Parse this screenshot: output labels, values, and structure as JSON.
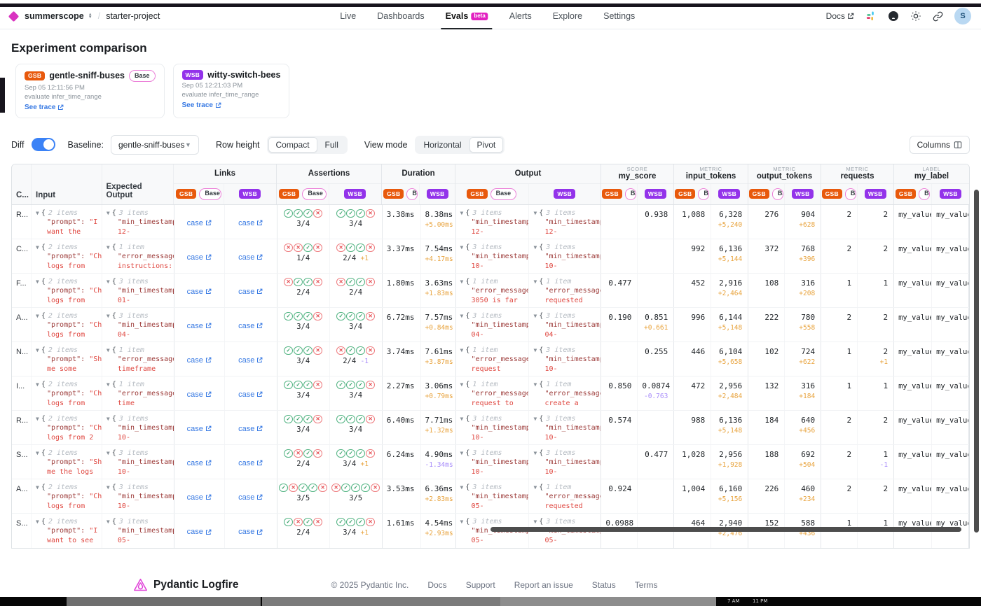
{
  "nav": {
    "org": "summerscope",
    "project": "starter-project",
    "items": [
      {
        "label": "Live"
      },
      {
        "label": "Dashboards"
      },
      {
        "label": "Evals",
        "badge": "beta",
        "active": true
      },
      {
        "label": "Alerts"
      },
      {
        "label": "Explore"
      },
      {
        "label": "Settings"
      }
    ],
    "docs_label": "Docs",
    "avatar": "S"
  },
  "title": "Experiment comparison",
  "experiments": [
    {
      "abbr": "GSB",
      "name": "gentle-sniff-buses",
      "base_label": "Base",
      "timestamp": "Sep 05 12:11:56 PM",
      "task": "evaluate infer_time_range",
      "trace_label": "See trace"
    },
    {
      "abbr": "WSB",
      "name": "witty-switch-bees",
      "timestamp": "Sep 05 12:21:03 PM",
      "task": "evaluate infer_time_range",
      "trace_label": "See trace"
    }
  ],
  "controls": {
    "diff_label": "Diff",
    "diff_on": true,
    "baseline_label": "Baseline:",
    "baseline_value": "gentle-sniff-buses",
    "row_height_label": "Row height",
    "row_height_options": [
      "Compact",
      "Full"
    ],
    "row_height_selected": "Compact",
    "view_mode_label": "View mode",
    "view_mode_options": [
      "Horizontal",
      "Pivot"
    ],
    "view_mode_selected": "Pivot",
    "columns_label": "Columns"
  },
  "table": {
    "lead_columns": {
      "case": "C...",
      "input": "Input",
      "expected": "Expected Output"
    },
    "badges": {
      "gsb": "GSB",
      "wsb": "WSB",
      "base": "Base"
    },
    "groups": [
      {
        "kicker": "",
        "label": "Links"
      },
      {
        "kicker": "",
        "label": "Assertions"
      },
      {
        "kicker": "",
        "label": "Duration"
      },
      {
        "kicker": "",
        "label": "Output"
      },
      {
        "kicker": "SCORE",
        "label": "my_score"
      },
      {
        "kicker": "METRIC",
        "label": "input_tokens"
      },
      {
        "kicker": "METRIC",
        "label": "output_tokens"
      },
      {
        "kicker": "METRIC",
        "label": "requests"
      },
      {
        "kicker": "LABEL",
        "label": "my_label"
      }
    ],
    "link_text": "case",
    "rows": [
      {
        "case": "R...",
        "input": {
          "count": "2 items",
          "key": "\"prompt\":",
          "valstart": "\"I",
          "val2": "want the"
        },
        "expected": {
          "count": "3 items",
          "key": "\"min_timestamp",
          "val2": "12-"
        },
        "asserts": {
          "gsb": {
            "icons": "cccx",
            "score": "3/4",
            "d": ""
          },
          "wsb": {
            "icons": "cccx",
            "score": "3/4",
            "d": ""
          }
        },
        "duration": {
          "gsb": "3.38ms",
          "wsb": "8.38ms",
          "wd": "+5.00ms"
        },
        "output": {
          "gsb": {
            "count": "3 items",
            "key": "\"min_timestamp",
            "val2": "12-"
          },
          "wsb": {
            "count": "3 items",
            "key": "\"min_timestamp",
            "val2": "12-"
          }
        },
        "score": {
          "g": "",
          "gd": "",
          "w": "0.938",
          "wd": ""
        },
        "itok": {
          "g": "1,088",
          "gd": "",
          "w": "6,328",
          "wd": "+5,240"
        },
        "otok": {
          "g": "276",
          "gd": "",
          "w": "904",
          "wd": "+628"
        },
        "req": {
          "g": "2",
          "gd": "",
          "w": "2",
          "wd": ""
        },
        "label": {
          "g": "my_value_",
          "w": "my_value_"
        }
      },
      {
        "case": "C...",
        "input": {
          "count": "2 items",
          "key": "\"prompt\":",
          "valstart": "\"Ch",
          "val2": "logs from"
        },
        "expected": {
          "count": "1 item",
          "key": "\"error_message",
          "val2": "instructions:"
        },
        "asserts": {
          "gsb": {
            "icons": "xxcx",
            "score": "1/4",
            "d": ""
          },
          "wsb": {
            "icons": "xccx",
            "score": "2/4",
            "d": "+1"
          }
        },
        "duration": {
          "gsb": "3.37ms",
          "wsb": "7.54ms",
          "wd": "+4.17ms"
        },
        "output": {
          "gsb": {
            "count": "3 items",
            "key": "\"min_timestamp",
            "val2": "10-"
          },
          "wsb": {
            "count": "3 items",
            "key": "\"min_timestamp",
            "val2": "10-"
          }
        },
        "score": {
          "g": "",
          "gd": "",
          "w": "",
          "wd": ""
        },
        "itok": {
          "g": "992",
          "gd": "",
          "w": "6,136",
          "wd": "+5,144"
        },
        "otok": {
          "g": "372",
          "gd": "",
          "w": "768",
          "wd": "+396"
        },
        "req": {
          "g": "2",
          "gd": "",
          "w": "2",
          "wd": ""
        },
        "label": {
          "g": "my_value_",
          "w": "my_value_"
        }
      },
      {
        "case": "F...",
        "input": {
          "count": "2 items",
          "key": "\"prompt\":",
          "valstart": "\"Ch",
          "val2": "logs from"
        },
        "expected": {
          "count": "3 items",
          "key": "\"min_timestamp",
          "val2": "01-"
        },
        "asserts": {
          "gsb": {
            "icons": "xccx",
            "score": "2/4",
            "d": ""
          },
          "wsb": {
            "icons": "xccx",
            "score": "2/4",
            "d": ""
          }
        },
        "duration": {
          "gsb": "1.80ms",
          "wsb": "3.63ms",
          "wd": "+1.83ms"
        },
        "output": {
          "gsb": {
            "count": "1 item",
            "key": "\"error_message",
            "val2": "3050 is far"
          },
          "wsb": {
            "count": "1 item",
            "key": "\"error_message",
            "val2": "requested"
          }
        },
        "score": {
          "g": "0.477",
          "gd": "",
          "w": "",
          "wd": ""
        },
        "itok": {
          "g": "452",
          "gd": "",
          "w": "2,916",
          "wd": "+2,464"
        },
        "otok": {
          "g": "108",
          "gd": "",
          "w": "316",
          "wd": "+208"
        },
        "req": {
          "g": "1",
          "gd": "",
          "w": "1",
          "wd": ""
        },
        "label": {
          "g": "my_value_",
          "w": "my_value_"
        }
      },
      {
        "case": "A...",
        "input": {
          "count": "2 items",
          "key": "\"prompt\":",
          "valstart": "\"Ch",
          "val2": "logs from"
        },
        "expected": {
          "count": "3 items",
          "key": "\"min_timestamp",
          "val2": "04-"
        },
        "asserts": {
          "gsb": {
            "icons": "cccx",
            "score": "3/4",
            "d": ""
          },
          "wsb": {
            "icons": "cccx",
            "score": "3/4",
            "d": ""
          }
        },
        "duration": {
          "gsb": "6.72ms",
          "wsb": "7.57ms",
          "wd": "+0.84ms"
        },
        "output": {
          "gsb": {
            "count": "3 items",
            "key": "\"min_timestamp",
            "val2": "04-"
          },
          "wsb": {
            "count": "3 items",
            "key": "\"min_timestamp",
            "val2": "04-"
          }
        },
        "score": {
          "g": "0.190",
          "gd": "",
          "w": "0.851",
          "wd": "+0.661"
        },
        "itok": {
          "g": "996",
          "gd": "",
          "w": "6,144",
          "wd": "+5,148"
        },
        "otok": {
          "g": "222",
          "gd": "",
          "w": "780",
          "wd": "+558"
        },
        "req": {
          "g": "2",
          "gd": "",
          "w": "2",
          "wd": ""
        },
        "label": {
          "g": "my_value_",
          "w": "my_value_"
        }
      },
      {
        "case": "N...",
        "input": {
          "count": "2 items",
          "key": "\"prompt\":",
          "valstart": "\"Sh",
          "val2": "me some"
        },
        "expected": {
          "count": "1 item",
          "key": "\"error_message",
          "val2": "timeframe"
        },
        "asserts": {
          "gsb": {
            "icons": "cccx",
            "score": "3/4",
            "d": ""
          },
          "wsb": {
            "icons": "xccx",
            "score": "2/4",
            "d": "-1"
          }
        },
        "duration": {
          "gsb": "3.74ms",
          "wsb": "7.61ms",
          "wd": "+3.87ms"
        },
        "output": {
          "gsb": {
            "count": "1 item",
            "key": "\"error_message",
            "val2": "request"
          },
          "wsb": {
            "count": "3 items",
            "key": "\"min_timestamp",
            "val2": "10-"
          }
        },
        "score": {
          "g": "",
          "gd": "",
          "w": "0.255",
          "wd": ""
        },
        "itok": {
          "g": "446",
          "gd": "",
          "w": "6,104",
          "wd": "+5,658"
        },
        "otok": {
          "g": "102",
          "gd": "",
          "w": "724",
          "wd": "+622"
        },
        "req": {
          "g": "1",
          "gd": "",
          "w": "2",
          "wd": "+1"
        },
        "label": {
          "g": "my_value_",
          "w": "my_value_"
        }
      },
      {
        "case": "I...",
        "input": {
          "count": "2 items",
          "key": "\"prompt\":",
          "valstart": "\"Ch",
          "val2": "logs from"
        },
        "expected": {
          "count": "1 item",
          "key": "\"error_message",
          "val2": "time"
        },
        "asserts": {
          "gsb": {
            "icons": "cccx",
            "score": "3/4",
            "d": ""
          },
          "wsb": {
            "icons": "cccx",
            "score": "3/4",
            "d": ""
          }
        },
        "duration": {
          "gsb": "2.27ms",
          "wsb": "3.06ms",
          "wd": "+0.79ms"
        },
        "output": {
          "gsb": {
            "count": "1 item",
            "key": "\"error_message",
            "val2": "request to"
          },
          "wsb": {
            "count": "1 item",
            "key": "\"error_message",
            "val2": "create a"
          }
        },
        "score": {
          "g": "0.850",
          "gd": "",
          "w": "0.0874",
          "wd": "-0.763"
        },
        "itok": {
          "g": "472",
          "gd": "",
          "w": "2,956",
          "wd": "+2,484"
        },
        "otok": {
          "g": "132",
          "gd": "",
          "w": "316",
          "wd": "+184"
        },
        "req": {
          "g": "1",
          "gd": "",
          "w": "1",
          "wd": ""
        },
        "label": {
          "g": "my_value_",
          "w": "my_value_"
        }
      },
      {
        "case": "R...",
        "input": {
          "count": "2 items",
          "key": "\"prompt\":",
          "valstart": "\"Ch",
          "val2": "logs from 2"
        },
        "expected": {
          "count": "3 items",
          "key": "\"min_timestamp",
          "val2": "10-"
        },
        "asserts": {
          "gsb": {
            "icons": "cccx",
            "score": "3/4",
            "d": ""
          },
          "wsb": {
            "icons": "cccx",
            "score": "3/4",
            "d": ""
          }
        },
        "duration": {
          "gsb": "6.40ms",
          "wsb": "7.71ms",
          "wd": "+1.32ms"
        },
        "output": {
          "gsb": {
            "count": "3 items",
            "key": "\"min_timestamp",
            "val2": "10-"
          },
          "wsb": {
            "count": "3 items",
            "key": "\"min_timestamp",
            "val2": "10-"
          }
        },
        "score": {
          "g": "0.574",
          "gd": "",
          "w": "",
          "wd": ""
        },
        "itok": {
          "g": "988",
          "gd": "",
          "w": "6,136",
          "wd": "+5,148"
        },
        "otok": {
          "g": "184",
          "gd": "",
          "w": "640",
          "wd": "+456"
        },
        "req": {
          "g": "2",
          "gd": "",
          "w": "2",
          "wd": ""
        },
        "label": {
          "g": "my_value_",
          "w": "my_value_"
        }
      },
      {
        "case": "S...",
        "input": {
          "count": "2 items",
          "key": "\"prompt\":",
          "valstart": "\"Sh",
          "val2": "me the logs"
        },
        "expected": {
          "count": "3 items",
          "key": "\"min_timestamp",
          "val2": "10-"
        },
        "asserts": {
          "gsb": {
            "icons": "cxcx",
            "score": "2/4",
            "d": ""
          },
          "wsb": {
            "icons": "cccx",
            "score": "3/4",
            "d": "+1"
          }
        },
        "duration": {
          "gsb": "6.24ms",
          "wsb": "4.90ms",
          "wd": "-1.34ms"
        },
        "output": {
          "gsb": {
            "count": "3 items",
            "key": "\"min_timestamp",
            "val2": "10-"
          },
          "wsb": {
            "count": "3 items",
            "key": "\"min_timestamp",
            "val2": "10-"
          }
        },
        "score": {
          "g": "",
          "gd": "",
          "w": "0.477",
          "wd": ""
        },
        "itok": {
          "g": "1,028",
          "gd": "",
          "w": "2,956",
          "wd": "+1,928"
        },
        "otok": {
          "g": "188",
          "gd": "",
          "w": "692",
          "wd": "+504"
        },
        "req": {
          "g": "2",
          "gd": "",
          "w": "1",
          "wd": "-1"
        },
        "label": {
          "g": "my_value_",
          "w": "my_value_"
        }
      },
      {
        "case": "A...",
        "input": {
          "count": "2 items",
          "key": "\"prompt\":",
          "valstart": "\"Ch",
          "val2": "logs from"
        },
        "expected": {
          "count": "3 items",
          "key": "\"min_timestamp",
          "val2": "10-"
        },
        "asserts": {
          "gsb": {
            "icons": "cxccx",
            "score": "3/5",
            "d": ""
          },
          "wsb": {
            "icons": "xcccx",
            "score": "3/5",
            "d": ""
          }
        },
        "duration": {
          "gsb": "3.53ms",
          "wsb": "6.36ms",
          "wd": "+2.83ms"
        },
        "output": {
          "gsb": {
            "count": "3 items",
            "key": "\"min_timestamp",
            "val2": "05-"
          },
          "wsb": {
            "count": "1 item",
            "key": "\"error_message",
            "val2": "requested"
          }
        },
        "score": {
          "g": "0.924",
          "gd": "",
          "w": "",
          "wd": ""
        },
        "itok": {
          "g": "1,004",
          "gd": "",
          "w": "6,160",
          "wd": "+5,156"
        },
        "otok": {
          "g": "226",
          "gd": "",
          "w": "460",
          "wd": "+234"
        },
        "req": {
          "g": "2",
          "gd": "",
          "w": "2",
          "wd": ""
        },
        "label": {
          "g": "my_value_",
          "w": "my_value_"
        }
      },
      {
        "case": "S...",
        "input": {
          "count": "2 items",
          "key": "\"prompt\":",
          "valstart": "\"I",
          "val2": "want to see"
        },
        "expected": {
          "count": "3 items",
          "key": "\"min_timestamp",
          "val2": "05-"
        },
        "asserts": {
          "gsb": {
            "icons": "cxcx",
            "score": "2/4",
            "d": ""
          },
          "wsb": {
            "icons": "cccx",
            "score": "3/4",
            "d": "+1"
          }
        },
        "duration": {
          "gsb": "1.61ms",
          "wsb": "4.54ms",
          "wd": "+2.93ms"
        },
        "output": {
          "gsb": {
            "count": "3 items",
            "key": "\"min_timestamp",
            "val2": "05-"
          },
          "wsb": {
            "count": "3 items",
            "key": "\"min_timestamp",
            "val2": "05-"
          }
        },
        "score": {
          "g": "0.0988",
          "gd": "",
          "w": "",
          "wd": ""
        },
        "itok": {
          "g": "464",
          "gd": "",
          "w": "2,940",
          "wd": "+2,476"
        },
        "otok": {
          "g": "152",
          "gd": "",
          "w": "588",
          "wd": "+436"
        },
        "req": {
          "g": "1",
          "gd": "",
          "w": "1",
          "wd": ""
        },
        "label": {
          "g": "my_value_",
          "w": "my_value_"
        }
      }
    ]
  },
  "footer": {
    "brand": "Pydantic Logfire",
    "copyright": "© 2025 Pydantic Inc.",
    "links": [
      "Docs",
      "Support",
      "Report an issue",
      "Status",
      "Terms"
    ]
  },
  "taskbar": {
    "times": [
      "7 AM",
      "11 PM"
    ]
  },
  "colors": {
    "gsb": "#e8590c",
    "wsb": "#9333ea",
    "beta": "#e221c1",
    "link": "#3779e3",
    "diff_pos": "#e8a33d",
    "diff_neg": "#a78bfa",
    "check": "#2f9e64",
    "cross": "#e5484d"
  }
}
